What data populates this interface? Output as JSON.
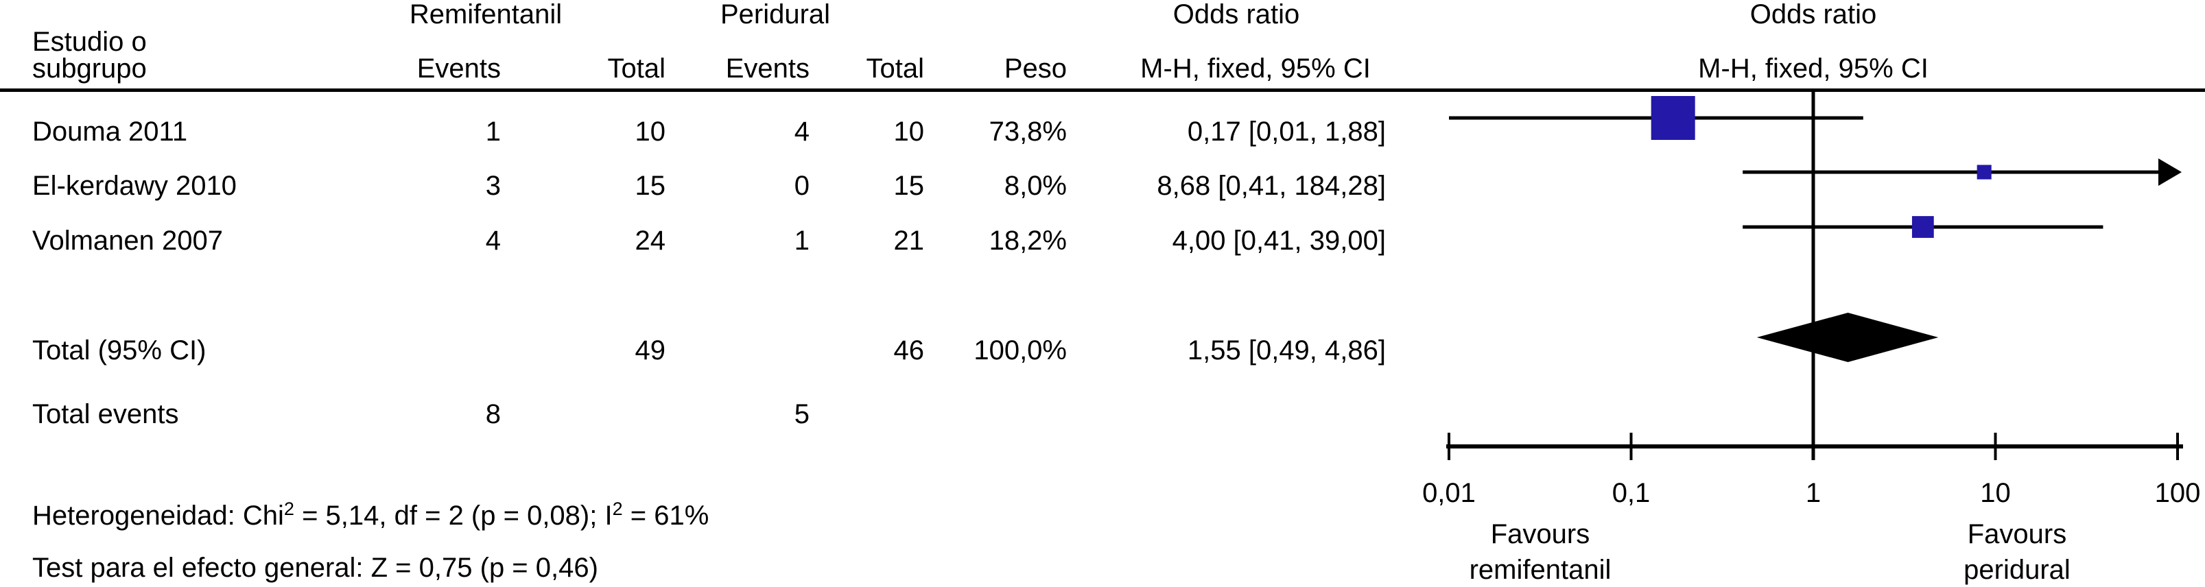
{
  "header": {
    "study_col_line1": "Estudio o",
    "study_col_line2": "subgrupo",
    "group1": "Remifentanil",
    "group2": "Peridural",
    "events_col": "Events",
    "total_col": "Total",
    "peso_col": "Peso",
    "or_col_title": "Odds ratio",
    "or_col_subtitle": "M-H, fixed, 95% CI",
    "plot_title": "Odds ratio",
    "plot_subtitle": "M-H, fixed, 95% CI"
  },
  "table": {
    "rows": [
      {
        "study": "Douma 2011",
        "r_events": "1",
        "r_total": "10",
        "p_events": "4",
        "p_total": "10",
        "peso": "73,8%",
        "or_ci": "0,17 [0,01, 1,88]"
      },
      {
        "study": "El-kerdawy 2010",
        "r_events": "3",
        "r_total": "15",
        "p_events": "0",
        "p_total": "15",
        "peso": "8,0%",
        "or_ci": "8,68 [0,41, 184,28]"
      },
      {
        "study": "Volmanen 2007",
        "r_events": "4",
        "r_total": "24",
        "p_events": "1",
        "p_total": "21",
        "peso": "18,2%",
        "or_ci": "4,00 [0,41, 39,00]"
      }
    ],
    "total_row": {
      "label": "Total (95% CI)",
      "r_total": "49",
      "p_total": "46",
      "peso": "100,0%",
      "or_ci": "1,55 [0,49, 4,86]"
    },
    "total_events": {
      "label": "Total events",
      "r_events": "8",
      "p_events": "5"
    }
  },
  "footer": {
    "het_p1": "Heterogeneidad: Chi",
    "het_sup1": "2",
    "het_p2": " = 5,14, df = 2 (p = 0,08); I",
    "het_sup2": "2",
    "het_p3": " = 61%",
    "overall_test": "Test para el efecto general: Z = 0,75 (p = 0,46)"
  },
  "chart_data": {
    "type": "forest",
    "x_scale": "log10",
    "x_min": 0.01,
    "x_max": 100,
    "null_line": 1,
    "x_ticks": [
      0.01,
      0.1,
      1,
      10,
      100
    ],
    "x_tick_labels": [
      "0,01",
      "0,1",
      "1",
      "10",
      "100"
    ],
    "series": [
      {
        "name": "Douma 2011",
        "or": 0.17,
        "low": 0.01,
        "high": 1.88,
        "weight": 73.8
      },
      {
        "name": "El-kerdawy 2010",
        "or": 8.68,
        "low": 0.41,
        "high": 184.28,
        "weight": 8.0
      },
      {
        "name": "Volmanen 2007",
        "or": 4.0,
        "low": 0.41,
        "high": 39.0,
        "weight": 18.2
      }
    ],
    "total": {
      "name": "Total (95% CI)",
      "or": 1.55,
      "low": 0.49,
      "high": 4.86
    },
    "favours_left": [
      "Favours",
      "remifentanil"
    ],
    "favours_right": [
      "Favours",
      "peridural"
    ],
    "marker_color": "#2318a8",
    "line_color": "#000000"
  }
}
